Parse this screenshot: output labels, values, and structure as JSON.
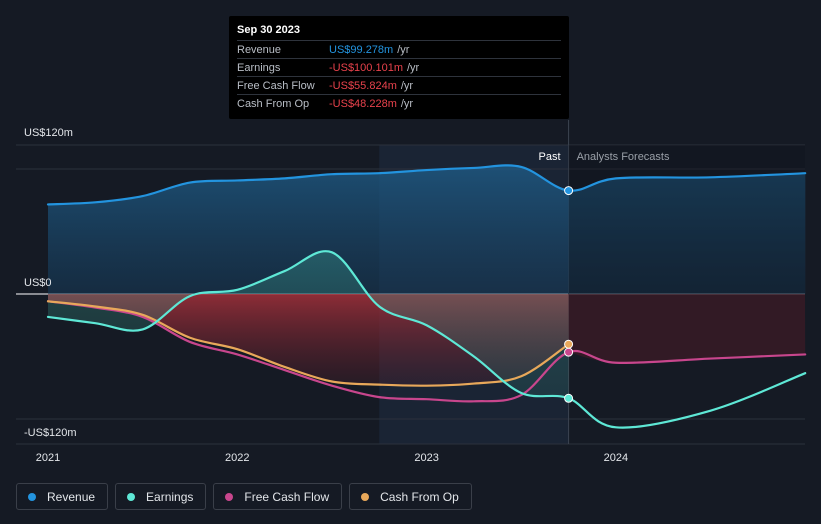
{
  "chart_data": {
    "type": "line",
    "y_unit_prefix": "US$",
    "ylim": [
      -120,
      120
    ],
    "y_ticks": [
      {
        "value": 120,
        "label": "US$120m"
      },
      {
        "value": 0,
        "label": "US$0"
      },
      {
        "value": -120,
        "label": "-US$120m"
      }
    ],
    "x_ticks": [
      {
        "value": 2021.0,
        "label": "2021"
      },
      {
        "value": 2022.0,
        "label": "2022"
      },
      {
        "value": 2023.0,
        "label": "2023"
      },
      {
        "value": 2024.0,
        "label": "2024"
      }
    ],
    "xlim": [
      2021.0,
      2025.0
    ],
    "past_label": "Past",
    "forecast_label": "Analysts Forecasts",
    "past_end": 2023.75,
    "highlight_start": 2022.75,
    "grid": true,
    "legend_position": "bottom-left",
    "series": [
      {
        "name": "Revenue",
        "color": "#2394df",
        "fill": true,
        "x": [
          2021.0,
          2021.25,
          2021.5,
          2021.75,
          2022.0,
          2022.25,
          2022.5,
          2022.75,
          2023.0,
          2023.25,
          2023.5,
          2023.75,
          2024.0,
          2024.5,
          2025.0
        ],
        "y": [
          86,
          88,
          94,
          107,
          109,
          111,
          115,
          116,
          119,
          121,
          122,
          99.278,
          111,
          112,
          116
        ]
      },
      {
        "name": "Earnings",
        "color": "#5ee8d6",
        "fill": true,
        "x": [
          2021.0,
          2021.25,
          2021.5,
          2021.75,
          2022.0,
          2022.25,
          2022.5,
          2022.75,
          2023.0,
          2023.25,
          2023.5,
          2023.75,
          2024.0,
          2024.5,
          2025.0
        ],
        "y": [
          -22,
          -28,
          -34,
          -2,
          4,
          22,
          40,
          -12,
          -30,
          -60,
          -95,
          -100.101,
          -128,
          -112,
          -76
        ]
      },
      {
        "name": "Free Cash Flow",
        "color": "#c8468d",
        "fill": false,
        "x": [
          2021.0,
          2021.25,
          2021.5,
          2021.75,
          2022.0,
          2022.25,
          2022.5,
          2022.75,
          2023.0,
          2023.25,
          2023.5,
          2023.75,
          2024.0,
          2024.5,
          2025.0
        ],
        "y": [
          -7,
          -13,
          -22,
          -46,
          -58,
          -73,
          -88,
          -99,
          -101,
          -103,
          -97,
          -55.824,
          -66,
          -62,
          -58
        ]
      },
      {
        "name": "Cash From Op",
        "color": "#e8a85a",
        "fill": false,
        "x": [
          2021.0,
          2021.25,
          2021.5,
          2021.75,
          2022.0,
          2022.25,
          2022.5,
          2022.75,
          2023.0,
          2023.25,
          2023.5,
          2023.75
        ],
        "y": [
          -7,
          -12,
          -20,
          -42,
          -53,
          -70,
          -84,
          -87,
          -88,
          -86,
          -79,
          -48.228
        ]
      }
    ]
  },
  "tooltip": {
    "date": "Sep 30 2023",
    "rows": [
      {
        "name": "Revenue",
        "value": "US$99.278m",
        "unit": "/yr",
        "color": "#2394df"
      },
      {
        "name": "Earnings",
        "value": "-US$100.101m",
        "unit": "/yr",
        "color": "#e8424c"
      },
      {
        "name": "Free Cash Flow",
        "value": "-US$55.824m",
        "unit": "/yr",
        "color": "#e8424c"
      },
      {
        "name": "Cash From Op",
        "value": "-US$48.228m",
        "unit": "/yr",
        "color": "#e8424c"
      }
    ]
  },
  "legend": {
    "items": [
      {
        "label": "Revenue",
        "color": "#2394df"
      },
      {
        "label": "Earnings",
        "color": "#5ee8d6"
      },
      {
        "label": "Free Cash Flow",
        "color": "#c8468d"
      },
      {
        "label": "Cash From Op",
        "color": "#e8a85a"
      }
    ]
  },
  "colors": {
    "background": "#151a24",
    "zero_line": "#ffffff",
    "grid": "#2c313b",
    "past_label": "#ffffff",
    "forecast_label": "#9aa0a8"
  }
}
